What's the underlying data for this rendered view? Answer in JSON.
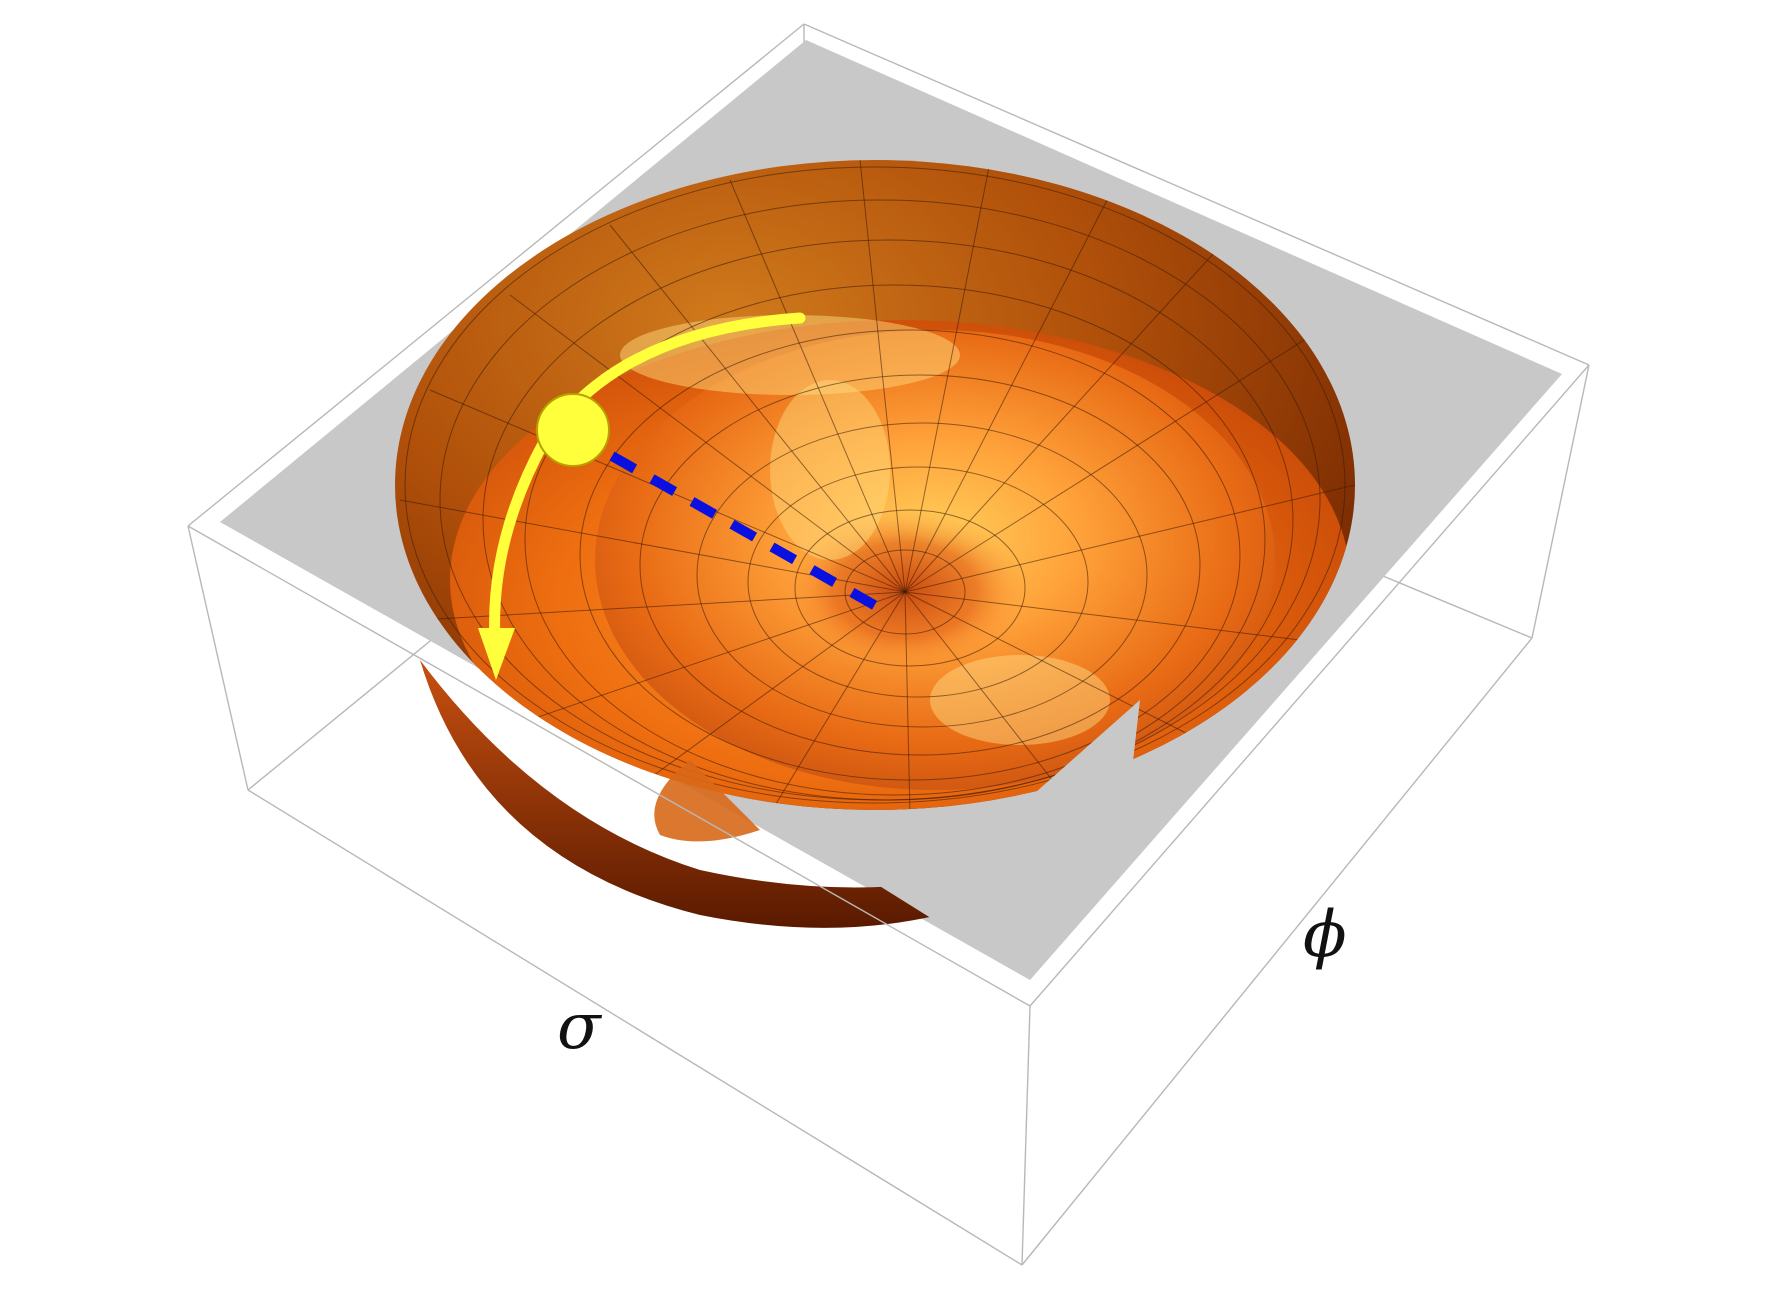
{
  "figure": {
    "axis_labels": {
      "sigma": "σ",
      "phi": "ϕ"
    },
    "colors": {
      "surface_light": "#ffc23a",
      "surface_mid": "#f07a10",
      "surface_dark": "#8a2c00",
      "plane": "#c8c8c8",
      "box_edge": "#b8b8b8",
      "trajectory": "#ffff3c",
      "ball": "#ffff3c",
      "radial_path": "#0a10e0"
    },
    "icons": {
      "ball": "ball-marker",
      "arrow": "curved-arrow",
      "dashed": "dashed-radial-line"
    }
  }
}
